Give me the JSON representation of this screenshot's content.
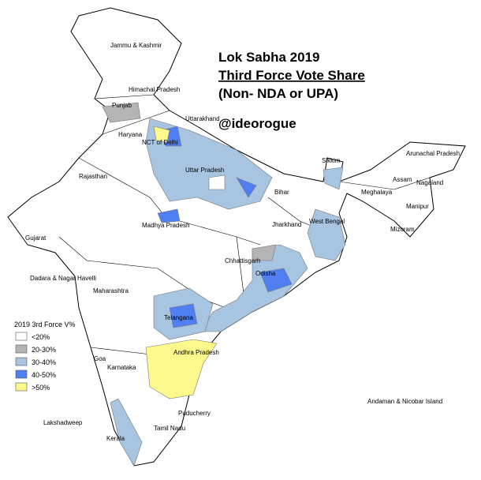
{
  "title": {
    "line1": "Lok Sabha 2019",
    "line2": "Third Force Vote Share",
    "line3": "(Non- NDA or UPA)"
  },
  "handle": "@ideorogue",
  "legend": {
    "title": "2019 3rd Force V%",
    "items": [
      {
        "label": "<20%",
        "color": "#ffffff"
      },
      {
        "label": "20-30%",
        "color": "#b4b4b4"
      },
      {
        "label": "30-40%",
        "color": "#a7c4e0"
      },
      {
        "label": "40-50%",
        "color": "#4f7ff0"
      },
      {
        "label": ">50%",
        "color": "#fdf98c"
      }
    ]
  },
  "labels": [
    "Jammu & Kashmir",
    "Himachal Pradesh",
    "Punjab",
    "Uttarakhand",
    "Haryana",
    "NCT of Delhi",
    "Arunachal Pradesh",
    "Sikkim",
    "Rajasthan",
    "Uttar Pradesh",
    "Assam",
    "Nagaland",
    "Bihar",
    "Meghalaya",
    "Manipur",
    "Jharkhand",
    "West Bengal",
    "Mizoram",
    "Gujarat",
    "Madhya Pradesh",
    "Chhattisgarh",
    "Odisha",
    "Dadara & Nagar Havelli",
    "Maharashtra",
    "Telangana",
    "Andhra Pradesh",
    "Goa",
    "Karnataka",
    "Andaman & Nicobar Island",
    "Puducherry",
    "Lakshadweep",
    "Tamil Nadu",
    "Kerala"
  ]
}
